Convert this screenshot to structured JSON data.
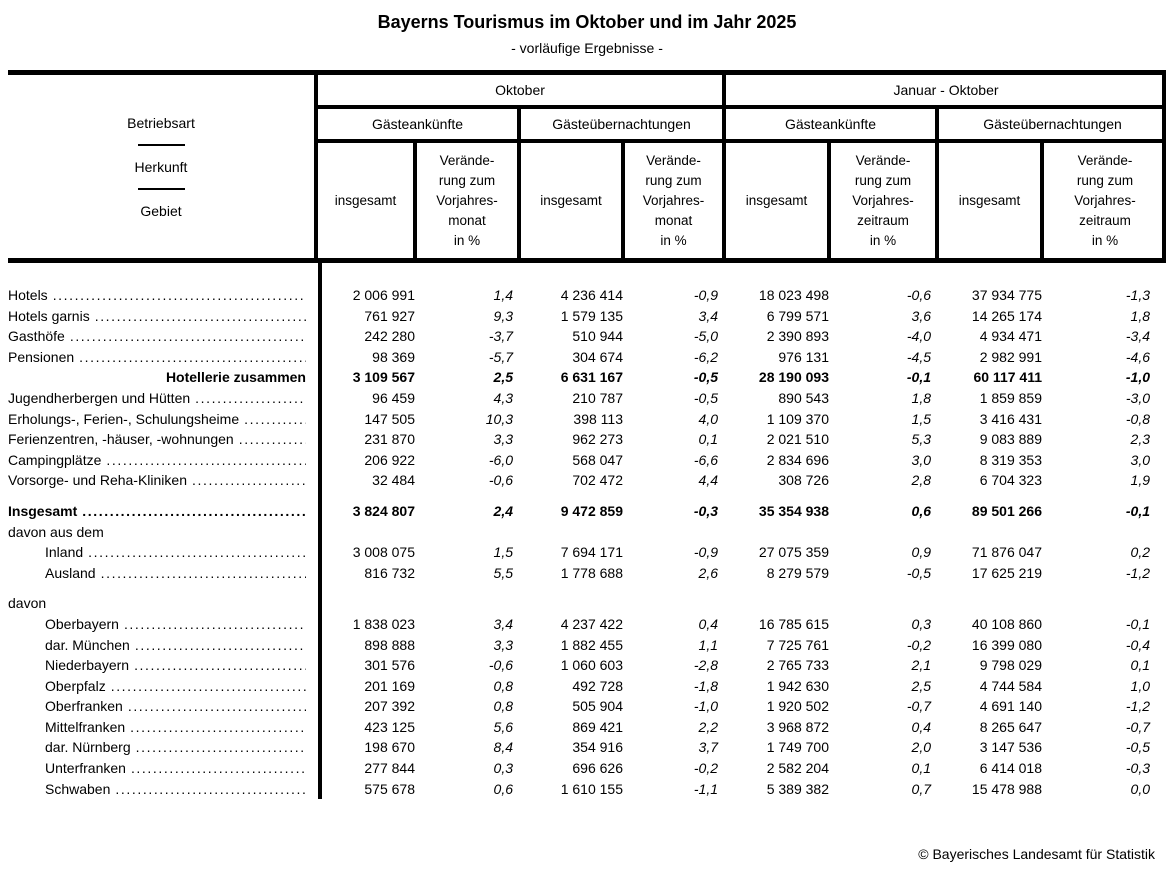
{
  "title": "Bayerns Tourismus im Oktober und im Jahr 2025",
  "subtitle": "- vorläufige Ergebnisse -",
  "footer": {
    "copyright": "© Bayerisches Landesamt für Statistik"
  },
  "table": {
    "stub": {
      "line1": "Betriebsart",
      "line2": "Herkunft",
      "line3": "Gebiet"
    },
    "periods": {
      "month": "Oktober",
      "ytd": "Januar - Oktober"
    },
    "measures": {
      "arrivals": "Gästeankünfte",
      "overnights": "Gästeübernachtungen"
    },
    "subcols": {
      "total": "insgesamt",
      "change_month": "Verände-\nrung zum\nVorjahres-\nmonat\nin %",
      "change_period": "Verände-\nrung zum\nVorjahres-\nzeitraum\nin %"
    },
    "rows": [
      {
        "label": "Hotels",
        "type": "data",
        "dots": true,
        "values": [
          "2 006 991",
          "1,4",
          "4 236 414",
          "-0,9",
          "18 023 498",
          "-0,6",
          "37 934 775",
          "-1,3"
        ]
      },
      {
        "label": "Hotels garnis",
        "type": "data",
        "dots": true,
        "values": [
          "761 927",
          "9,3",
          "1 579 135",
          "3,4",
          "6 799 571",
          "3,6",
          "14 265 174",
          "1,8"
        ]
      },
      {
        "label": "Gasthöfe",
        "type": "data",
        "dots": true,
        "values": [
          "242 280",
          "-3,7",
          "510 944",
          "-5,0",
          "2 390 893",
          "-4,0",
          "4 934 471",
          "-3,4"
        ]
      },
      {
        "label": "Pensionen",
        "type": "data",
        "dots": true,
        "values": [
          "98 369",
          "-5,7",
          "304 674",
          "-6,2",
          "976 131",
          "-4,5",
          "2 982 991",
          "-4,6"
        ]
      },
      {
        "label": "Hotellerie zusammen",
        "type": "data",
        "bold": true,
        "label_align": "right",
        "dots": false,
        "values": [
          "3 109 567",
          "2,5",
          "6 631 167",
          "-0,5",
          "28 190 093",
          "-0,1",
          "60 117 411",
          "-1,0"
        ]
      },
      {
        "label": "Jugendherbergen und Hütten",
        "type": "data",
        "dots": true,
        "values": [
          "96 459",
          "4,3",
          "210 787",
          "-0,5",
          "890 543",
          "1,8",
          "1 859 859",
          "-3,0"
        ]
      },
      {
        "label": "Erholungs-, Ferien-, Schulungsheime",
        "type": "data",
        "dots": true,
        "values": [
          "147 505",
          "10,3",
          "398 113",
          "4,0",
          "1 109 370",
          "1,5",
          "3 416 431",
          "-0,8"
        ]
      },
      {
        "label": "Ferienzentren, -häuser, -wohnungen",
        "type": "data",
        "dots": true,
        "values": [
          "231 870",
          "3,3",
          "962 273",
          "0,1",
          "2 021 510",
          "5,3",
          "9 083 889",
          "2,3"
        ]
      },
      {
        "label": "Campingplätze",
        "type": "data",
        "dots": true,
        "values": [
          "206 922",
          "-6,0",
          "568 047",
          "-6,6",
          "2 834 696",
          "3,0",
          "8 319 353",
          "3,0"
        ]
      },
      {
        "label": "Vorsorge- und Reha-Kliniken",
        "type": "data",
        "dots": true,
        "values": [
          "32 484",
          "-0,6",
          "702 472",
          "4,4",
          "308 726",
          "2,8",
          "6 704 323",
          "1,9"
        ]
      },
      {
        "label": "Insgesamt",
        "type": "data",
        "bold": true,
        "dots": true,
        "gap_before": true,
        "values": [
          "3 824 807",
          "2,4",
          "9 472 859",
          "-0,3",
          "35 354 938",
          "0,6",
          "89 501 266",
          "-0,1"
        ]
      },
      {
        "label": "davon aus dem",
        "type": "section"
      },
      {
        "label": "Inland",
        "type": "data",
        "indent": true,
        "dots": true,
        "values": [
          "3 008 075",
          "1,5",
          "7 694 171",
          "-0,9",
          "27 075 359",
          "0,9",
          "71 876 047",
          "0,2"
        ]
      },
      {
        "label": "Ausland",
        "type": "data",
        "indent": true,
        "dots": true,
        "values": [
          "816 732",
          "5,5",
          "1 778 688",
          "2,6",
          "8 279 579",
          "-0,5",
          "17 625 219",
          "-1,2"
        ]
      },
      {
        "label": "davon",
        "type": "section",
        "gap_before": true
      },
      {
        "label": "Oberbayern",
        "type": "data",
        "indent": true,
        "dots": true,
        "values": [
          "1 838 023",
          "3,4",
          "4 237 422",
          "0,4",
          "16 785 615",
          "0,3",
          "40 108 860",
          "-0,1"
        ]
      },
      {
        "label": "dar. München",
        "type": "data",
        "indent": true,
        "dots": true,
        "values": [
          "898 888",
          "3,3",
          "1 882 455",
          "1,1",
          "7 725 761",
          "-0,2",
          "16 399 080",
          "-0,4"
        ]
      },
      {
        "label": "Niederbayern",
        "type": "data",
        "indent": true,
        "dots": true,
        "values": [
          "301 576",
          "-0,6",
          "1 060 603",
          "-2,8",
          "2 765 733",
          "2,1",
          "9 798 029",
          "0,1"
        ]
      },
      {
        "label": "Oberpfalz",
        "type": "data",
        "indent": true,
        "dots": true,
        "values": [
          "201 169",
          "0,8",
          "492 728",
          "-1,8",
          "1 942 630",
          "2,5",
          "4 744 584",
          "1,0"
        ]
      },
      {
        "label": "Oberfranken",
        "type": "data",
        "indent": true,
        "dots": true,
        "values": [
          "207 392",
          "0,8",
          "505 904",
          "-1,0",
          "1 920 502",
          "-0,7",
          "4 691 140",
          "-1,2"
        ]
      },
      {
        "label": "Mittelfranken",
        "type": "data",
        "indent": true,
        "dots": true,
        "values": [
          "423 125",
          "5,6",
          "869 421",
          "2,2",
          "3 968 872",
          "0,4",
          "8 265 647",
          "-0,7"
        ]
      },
      {
        "label": "dar. Nürnberg",
        "type": "data",
        "indent": true,
        "dots": true,
        "values": [
          "198 670",
          "8,4",
          "354 916",
          "3,7",
          "1 749 700",
          "2,0",
          "3 147 536",
          "-0,5"
        ]
      },
      {
        "label": "Unterfranken",
        "type": "data",
        "indent": true,
        "dots": true,
        "values": [
          "277 844",
          "0,3",
          "696 626",
          "-0,2",
          "2 582 204",
          "0,1",
          "6 414 018",
          "-0,3"
        ]
      },
      {
        "label": "Schwaben",
        "type": "data",
        "indent": true,
        "dots": true,
        "values": [
          "575 678",
          "0,6",
          "1 610 155",
          "-1,1",
          "5 389 382",
          "0,7",
          "15 478 988",
          "0,0"
        ]
      }
    ]
  }
}
